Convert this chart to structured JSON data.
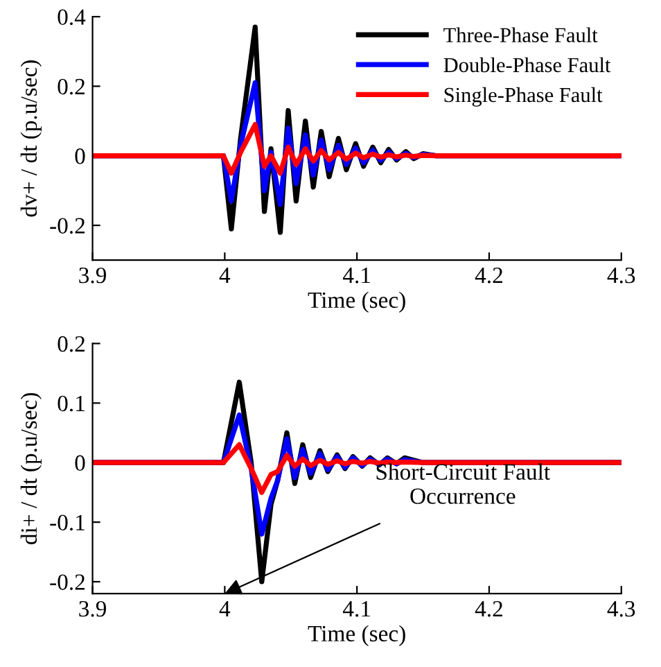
{
  "chart_data": [
    {
      "type": "line",
      "xlabel": "Time (sec)",
      "ylabel": "dv+ / dt (p.u/sec)",
      "xlim": [
        3.9,
        4.3
      ],
      "xticks": [
        3.9,
        4,
        4.1,
        4.2,
        4.3
      ],
      "ylim": [
        -0.3,
        0.4
      ],
      "yticks": [
        -0.2,
        0,
        0.2,
        0.4
      ],
      "grid": false,
      "legend": "top right",
      "x": [
        3.9,
        3.999,
        4.005,
        4.012,
        4.023,
        4.03,
        4.035,
        4.042,
        4.048,
        4.054,
        4.061,
        4.067,
        4.073,
        4.079,
        4.086,
        4.092,
        4.099,
        4.105,
        4.112,
        4.118,
        4.124,
        4.13,
        4.137,
        4.143,
        4.15,
        4.16,
        4.3
      ],
      "series": [
        {
          "name": "Three-Phase Fault",
          "color": "#000000",
          "values": [
            0,
            0,
            -0.21,
            0.05,
            0.37,
            -0.16,
            0.02,
            -0.22,
            0.13,
            -0.13,
            0.1,
            -0.09,
            0.07,
            -0.06,
            0.05,
            -0.04,
            0.035,
            -0.03,
            0.025,
            -0.02,
            0.018,
            -0.012,
            0.012,
            -0.008,
            0.006,
            0,
            0
          ]
        },
        {
          "name": "Double-Phase Fault",
          "color": "#0000ff",
          "values": [
            0,
            0,
            -0.13,
            0.03,
            0.21,
            -0.1,
            0.01,
            -0.14,
            0.08,
            -0.08,
            0.06,
            -0.055,
            0.045,
            -0.04,
            0.03,
            -0.025,
            0.022,
            -0.02,
            0.016,
            -0.013,
            0.011,
            -0.008,
            0.007,
            -0.005,
            0.004,
            0,
            0
          ]
        },
        {
          "name": "Single-Phase Fault",
          "color": "#ff0000",
          "values": [
            0,
            0,
            -0.05,
            0.01,
            0.09,
            -0.03,
            0.0,
            -0.05,
            0.025,
            -0.025,
            0.02,
            -0.015,
            0.015,
            -0.012,
            0.01,
            -0.01,
            0.008,
            -0.006,
            0.005,
            -0.004,
            0.003,
            -0.003,
            0.002,
            -0.002,
            0.001,
            0,
            0
          ]
        }
      ]
    },
    {
      "type": "line",
      "xlabel": "Time (sec)",
      "ylabel": "di+ / dt (p.u/sec)",
      "xlim": [
        3.9,
        4.3
      ],
      "xticks": [
        3.9,
        4,
        4.1,
        4.2,
        4.3
      ],
      "ylim": [
        -0.22,
        0.2
      ],
      "yticks": [
        -0.2,
        -0.1,
        0,
        0.1,
        0.2
      ],
      "grid": false,
      "annotations": [
        "Short-Circuit Fault\nOccurrence"
      ],
      "x": [
        3.9,
        3.999,
        4.011,
        4.02,
        4.028,
        4.035,
        4.04,
        4.047,
        4.053,
        4.059,
        4.065,
        4.072,
        4.078,
        4.085,
        4.091,
        4.097,
        4.104,
        4.11,
        4.117,
        4.123,
        4.13,
        4.136,
        4.15,
        4.3
      ],
      "series": [
        {
          "color": "#000000",
          "values": [
            0,
            0,
            0.135,
            0,
            -0.2,
            -0.07,
            -0.03,
            0.05,
            -0.035,
            0.03,
            -0.025,
            0.02,
            -0.015,
            0.013,
            -0.01,
            0.01,
            -0.006,
            0.008,
            -0.004,
            0.008,
            -0.002,
            0.008,
            0,
            0
          ]
        },
        {
          "color": "#0000ff",
          "values": [
            0,
            0,
            0.08,
            -0.01,
            -0.12,
            -0.06,
            -0.03,
            0.04,
            -0.025,
            0.022,
            -0.018,
            0.015,
            -0.012,
            0.01,
            -0.008,
            0.008,
            -0.005,
            0.006,
            -0.003,
            0.006,
            -0.002,
            0.005,
            0,
            0
          ]
        },
        {
          "color": "#ff0000",
          "values": [
            0,
            0,
            0.03,
            -0.01,
            -0.05,
            -0.02,
            -0.015,
            0.012,
            -0.006,
            0.006,
            -0.005,
            0.004,
            -0.003,
            0.003,
            -0.002,
            0.002,
            -0.001,
            0.002,
            -0.001,
            0.001,
            0,
            0.001,
            0,
            0
          ]
        }
      ]
    }
  ]
}
